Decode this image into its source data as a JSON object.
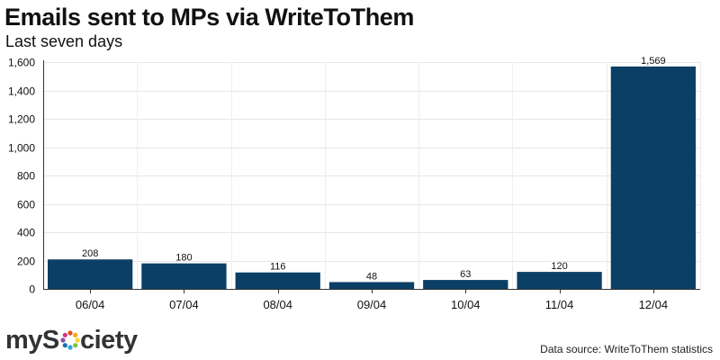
{
  "chart_data": {
    "type": "bar",
    "title": "Emails sent to MPs via WriteToThem",
    "subtitle": "Last seven days",
    "categories": [
      "06/04",
      "07/04",
      "08/04",
      "09/04",
      "10/04",
      "11/04",
      "12/04"
    ],
    "values": [
      208,
      180,
      116,
      48,
      63,
      120,
      1569
    ],
    "value_labels": [
      "208",
      "180",
      "116",
      "48",
      "63",
      "120",
      "1,569"
    ],
    "yticks": [
      0,
      200,
      400,
      600,
      800,
      1000,
      1200,
      1400,
      1600
    ],
    "ytick_labels": [
      "0",
      "200",
      "400",
      "600",
      "800",
      "1,000",
      "1,200",
      "1,400",
      "1,600"
    ],
    "ylim": [
      0,
      1600
    ],
    "xlabel": "",
    "ylabel": "",
    "grid": true,
    "bar_color": "#0b3f66"
  },
  "branding": {
    "logo": "mySociety"
  },
  "footer": {
    "source": "Data source: WriteToThem statistics"
  }
}
